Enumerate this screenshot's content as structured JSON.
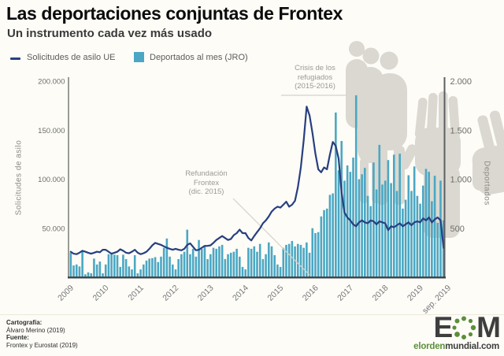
{
  "header": {
    "title": "Las deportaciones conjuntas de Frontex",
    "subtitle": "Un instrumento cada vez más usado"
  },
  "legend": {
    "items": [
      {
        "label": "Solicitudes de asilo UE",
        "swatch": "line"
      },
      {
        "label": "Deportados al mes (JRO)",
        "swatch": "square"
      }
    ]
  },
  "chart_data": {
    "type": "bar+line",
    "title": "Las deportaciones conjuntas de Frontex",
    "x_months": {
      "start": "2009-01",
      "end": "2019-09"
    },
    "x_tick_labels": [
      "2009",
      "2010",
      "2011",
      "2012",
      "2013",
      "2014",
      "2015",
      "2016",
      "2017",
      "2018",
      "2019",
      "sep. 2019"
    ],
    "left_axis": {
      "label": "Solicitudes de asilo",
      "tick_labels": [
        "50.000",
        "100.000",
        "150.000",
        "200.000"
      ],
      "tick_values": [
        50000,
        100000,
        150000,
        200000
      ],
      "min": 0,
      "max": 200000
    },
    "right_axis": {
      "label": "Deportados",
      "tick_labels": [
        "500",
        "1.000",
        "1.500",
        "2.000"
      ],
      "tick_values": [
        500,
        1000,
        1500,
        2000
      ],
      "min": 0,
      "max": 2000
    },
    "series": [
      {
        "name": "Solicitudes de asilo UE",
        "type": "line",
        "axis": "left",
        "color": "#283f80",
        "monthly_values": [
          26000,
          24000,
          23500,
          25000,
          27000,
          26000,
          25000,
          24000,
          25000,
          26000,
          25500,
          28000,
          28000,
          26000,
          24000,
          25000,
          26000,
          28500,
          27000,
          25000,
          24500,
          26000,
          28000,
          25000,
          23500,
          24500,
          26000,
          29000,
          32500,
          35000,
          34000,
          33000,
          31500,
          30000,
          29000,
          28000,
          29000,
          28000,
          27500,
          29000,
          33000,
          34500,
          31000,
          27500,
          28000,
          30000,
          32000,
          32000,
          32500,
          35000,
          38000,
          40000,
          42000,
          40000,
          38000,
          39000,
          43000,
          45000,
          48500,
          45000,
          45000,
          40000,
          37500,
          42000,
          46000,
          50000,
          55000,
          58000,
          62000,
          67000,
          70000,
          72000,
          71000,
          74000,
          77000,
          72000,
          74000,
          78000,
          92000,
          112000,
          140000,
          174000,
          165000,
          147000,
          126000,
          110000,
          107000,
          112000,
          110000,
          125000,
          138000,
          134000,
          121000,
          87000,
          66000,
          61000,
          58000,
          54000,
          52000,
          56000,
          58000,
          56000,
          55000,
          58000,
          57000,
          54000,
          57000,
          56000,
          55000,
          48000,
          52000,
          51000,
          53000,
          55000,
          52000,
          54000,
          56000,
          53000,
          56000,
          57000,
          56000,
          60000,
          58000,
          61000,
          56000,
          59000,
          61000,
          58000,
          30000
        ]
      },
      {
        "name": "Deportados al mes (JRO)",
        "type": "bar",
        "axis": "right",
        "color": "#4ba7c3",
        "monthly_values": [
          250,
          120,
          130,
          110,
          270,
          30,
          50,
          40,
          190,
          130,
          160,
          40,
          130,
          235,
          240,
          230,
          225,
          105,
          230,
          185,
          110,
          80,
          225,
          40,
          80,
          130,
          170,
          190,
          195,
          205,
          155,
          210,
          300,
          395,
          210,
          130,
          80,
          185,
          235,
          260,
          485,
          235,
          290,
          210,
          380,
          290,
          315,
          185,
          235,
          300,
          290,
          315,
          330,
          185,
          235,
          250,
          260,
          290,
          210,
          105,
          80,
          300,
          290,
          315,
          260,
          340,
          185,
          235,
          355,
          315,
          225,
          130,
          105,
          300,
          330,
          340,
          370,
          315,
          340,
          330,
          300,
          355,
          250,
          500,
          450,
          460,
          620,
          685,
          700,
          840,
          855,
          1680,
          1090,
          1390,
          985,
          1140,
          1075,
          1220,
          1855,
          1000,
          1050,
          1115,
          830,
          725,
          1170,
          895,
          1350,
          945,
          985,
          1195,
          960,
          1250,
          880,
          1260,
          700,
          790,
          1040,
          880,
          1130,
          830,
          750,
          935,
          1105,
          1075,
          775,
          1035,
          555,
          985,
          580
        ]
      }
    ],
    "annotations": [
      {
        "lines": [
          "Refundación",
          "Frontex",
          "(dic. 2015)"
        ]
      },
      {
        "lines": [
          "Crisis de los",
          "refugiados",
          "(2015-2016)"
        ]
      }
    ],
    "grid": false,
    "legend_position": "top-left"
  },
  "footer": {
    "cartography_label": "Cartografía:",
    "cartography": "Álvaro Merino (2019)",
    "source_label": "Fuente:",
    "source": "Frontex y Eurostat (2019)"
  },
  "logo": {
    "letter_e": "E",
    "letter_m": "M",
    "url_green": "elorden",
    "url_dark": "mundial.com",
    "dot_color": "#5c8f3a"
  }
}
